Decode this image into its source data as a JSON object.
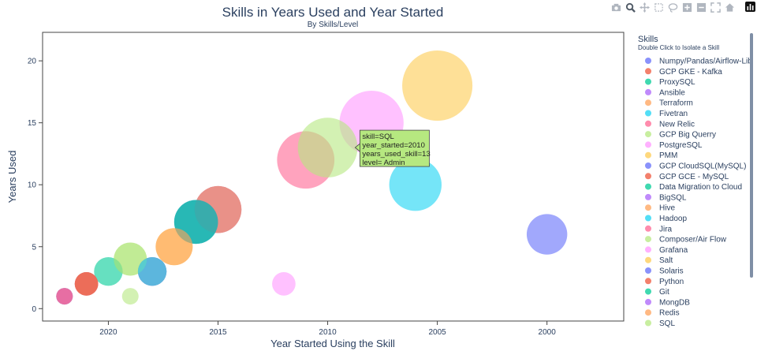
{
  "chart_data": {
    "type": "scatter",
    "title": "Skills in Years Used and Year Started",
    "subtitle": "By Skills/Level",
    "xlabel": "Year Started Using the Skill",
    "ylabel": "Years Used",
    "xlim": [
      2023,
      1996.5
    ],
    "ylim": [
      -1,
      22.3
    ],
    "x_reversed": true,
    "xticks": [
      2020,
      2015,
      2010,
      2005,
      2000
    ],
    "yticks": [
      0,
      5,
      10,
      15,
      20
    ],
    "grid": false,
    "legend": {
      "title": "Skills",
      "subtitle": "Double Click to Isolate a Skill",
      "placement": "right"
    },
    "series": [
      {
        "name": "Numpy/Pandas/Airflow-Lib",
        "color": "#636EFA",
        "points": [
          {
            "x": 2000,
            "y": 6,
            "size": 6
          }
        ]
      },
      {
        "name": "GCP GKE - Kafka",
        "color": "#EF553B",
        "points": [
          {
            "x": 2015,
            "y": 8,
            "size": 8
          }
        ]
      },
      {
        "name": "ProxySQL",
        "color": "#00CC96",
        "points": [
          {
            "x": 2016,
            "y": 7,
            "size": 7
          }
        ]
      },
      {
        "name": "Ansible",
        "color": "#AB63FA",
        "points": [
          {
            "x": 2015,
            "y": 8,
            "size": 8
          }
        ]
      },
      {
        "name": "Terraform",
        "color": "#FFA15A",
        "points": [
          {
            "x": 2015,
            "y": 8,
            "size": 8
          }
        ]
      },
      {
        "name": "Fivetran",
        "color": "#19D3F3",
        "points": [
          {
            "x": 2022,
            "y": 1,
            "size": 1
          }
        ]
      },
      {
        "name": "New Relic",
        "color": "#FF6692",
        "points": [
          {
            "x": 2011,
            "y": 12,
            "size": 12
          }
        ]
      },
      {
        "name": "GCP Big Querry",
        "color": "#B6E880",
        "points": [
          {
            "x": 2019,
            "y": 4,
            "size": 4
          }
        ]
      },
      {
        "name": "PostgreSQL",
        "color": "#FF97FF",
        "points": [
          {
            "x": 2008,
            "y": 15,
            "size": 15
          }
        ]
      },
      {
        "name": "PMM",
        "color": "#FECB52",
        "points": [
          {
            "x": 2017,
            "y": 5,
            "size": 5
          }
        ]
      },
      {
        "name": "GCP CloudSQL(MySQL)",
        "color": "#636EFA",
        "points": [
          {
            "x": 2022,
            "y": 1,
            "size": 1
          }
        ]
      },
      {
        "name": "GCP GCE - MySQL",
        "color": "#EF553B",
        "points": [
          {
            "x": 2021,
            "y": 2,
            "size": 2
          }
        ]
      },
      {
        "name": "Data Migration to Cloud",
        "color": "#00CC96",
        "points": [
          {
            "x": 2020,
            "y": 3,
            "size": 3
          }
        ]
      },
      {
        "name": "BigSQL",
        "color": "#AB63FA",
        "points": [
          {
            "x": 2021,
            "y": 2,
            "size": 2
          }
        ]
      },
      {
        "name": "Hive",
        "color": "#FFA15A",
        "points": [
          {
            "x": 2021,
            "y": 2,
            "size": 2
          }
        ]
      },
      {
        "name": "Hadoop",
        "color": "#19D3F3",
        "points": [
          {
            "x": 2006,
            "y": 10,
            "size": 10
          }
        ]
      },
      {
        "name": "Jira",
        "color": "#FF6692",
        "points": [
          {
            "x": 2022,
            "y": 1,
            "size": 1
          }
        ]
      },
      {
        "name": "Composer/Air Flow",
        "color": "#B6E880",
        "points": [
          {
            "x": 2019,
            "y": 1,
            "size": 1
          }
        ]
      },
      {
        "name": "Grafana",
        "color": "#FF97FF",
        "points": [
          {
            "x": 2012,
            "y": 2,
            "size": 2
          }
        ]
      },
      {
        "name": "Salt",
        "color": "#FECB52",
        "points": [
          {
            "x": 2005,
            "y": 18,
            "size": 18
          }
        ]
      },
      {
        "name": "Solaris",
        "color": "#636EFA",
        "points": [
          {
            "x": 2016,
            "y": 7,
            "size": 7
          }
        ]
      },
      {
        "name": "Python",
        "color": "#EF553B",
        "points": [
          {
            "x": 2021,
            "y": 2,
            "size": 2
          }
        ]
      },
      {
        "name": "Git",
        "color": "#00CC96",
        "points": [
          {
            "x": 2016,
            "y": 7,
            "size": 7
          }
        ]
      },
      {
        "name": "MongDB",
        "color": "#AB63FA",
        "points": [
          {
            "x": 2018,
            "y": 3,
            "size": 3
          }
        ]
      },
      {
        "name": "Redis",
        "color": "#FFA15A",
        "points": [
          {
            "x": 2017,
            "y": 5,
            "size": 5
          }
        ]
      },
      {
        "name": "SQL",
        "color": "#B6E880",
        "points": [
          {
            "x": 2010,
            "y": 13,
            "size": 13
          }
        ]
      },
      {
        "name": "Hadoop",
        "color": "#19D3F3",
        "points": [
          {
            "x": 2018,
            "y": 3,
            "size": 3
          }
        ]
      },
      {
        "name": "Jira",
        "color": "#FF6692",
        "points": [
          {
            "x": 2018,
            "y": 3,
            "size": 3
          }
        ]
      },
      {
        "name": "Jira",
        "color": "#FF6692",
        "points": [
          {
            "x": 2022,
            "y": 1,
            "size": 1
          }
        ]
      },
      {
        "name": "Composer/Air Flow",
        "color": "#B6E880",
        "points": [
          {
            "x": 2019,
            "y": 4,
            "size": 4
          }
        ]
      },
      {
        "name": "Fivetran",
        "color": "#19D3F3",
        "points": [
          {
            "x": 2018,
            "y": 3,
            "size": 3
          }
        ]
      }
    ],
    "tooltip": {
      "lines": [
        "skill=SQL",
        "year_started=2010",
        "years_used_skill=13",
        "level= Admin"
      ],
      "color": "#B6E880"
    }
  },
  "modebar": {
    "icons": [
      "camera-icon",
      "zoom-icon",
      "pan-icon",
      "box-select-icon",
      "lasso-icon",
      "zoom-in-icon",
      "zoom-out-icon",
      "autoscale-icon",
      "home-icon",
      "plotly-logo-icon"
    ]
  }
}
